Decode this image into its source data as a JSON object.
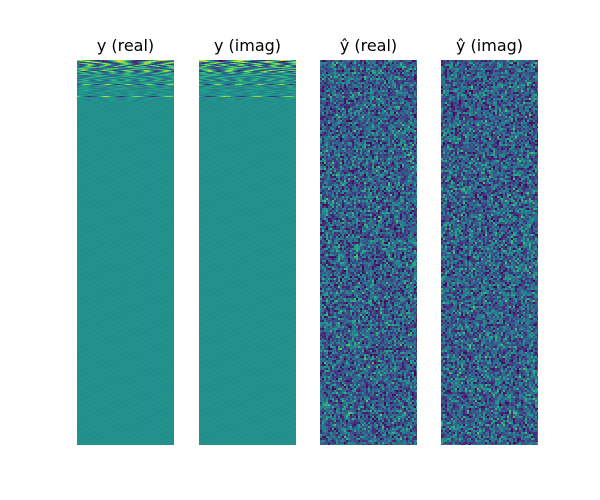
{
  "chart_data": {
    "type": "heatmap",
    "colormap": "viridis",
    "panels": [
      {
        "title": "y (real)",
        "pattern": "structured",
        "seed": 11
      },
      {
        "title": "y (imag)",
        "pattern": "structured",
        "seed": 23
      },
      {
        "title": "ŷ (real)",
        "pattern": "noise",
        "seed": 37
      },
      {
        "title": "ŷ (imag)",
        "pattern": "noise",
        "seed": 53
      }
    ]
  }
}
